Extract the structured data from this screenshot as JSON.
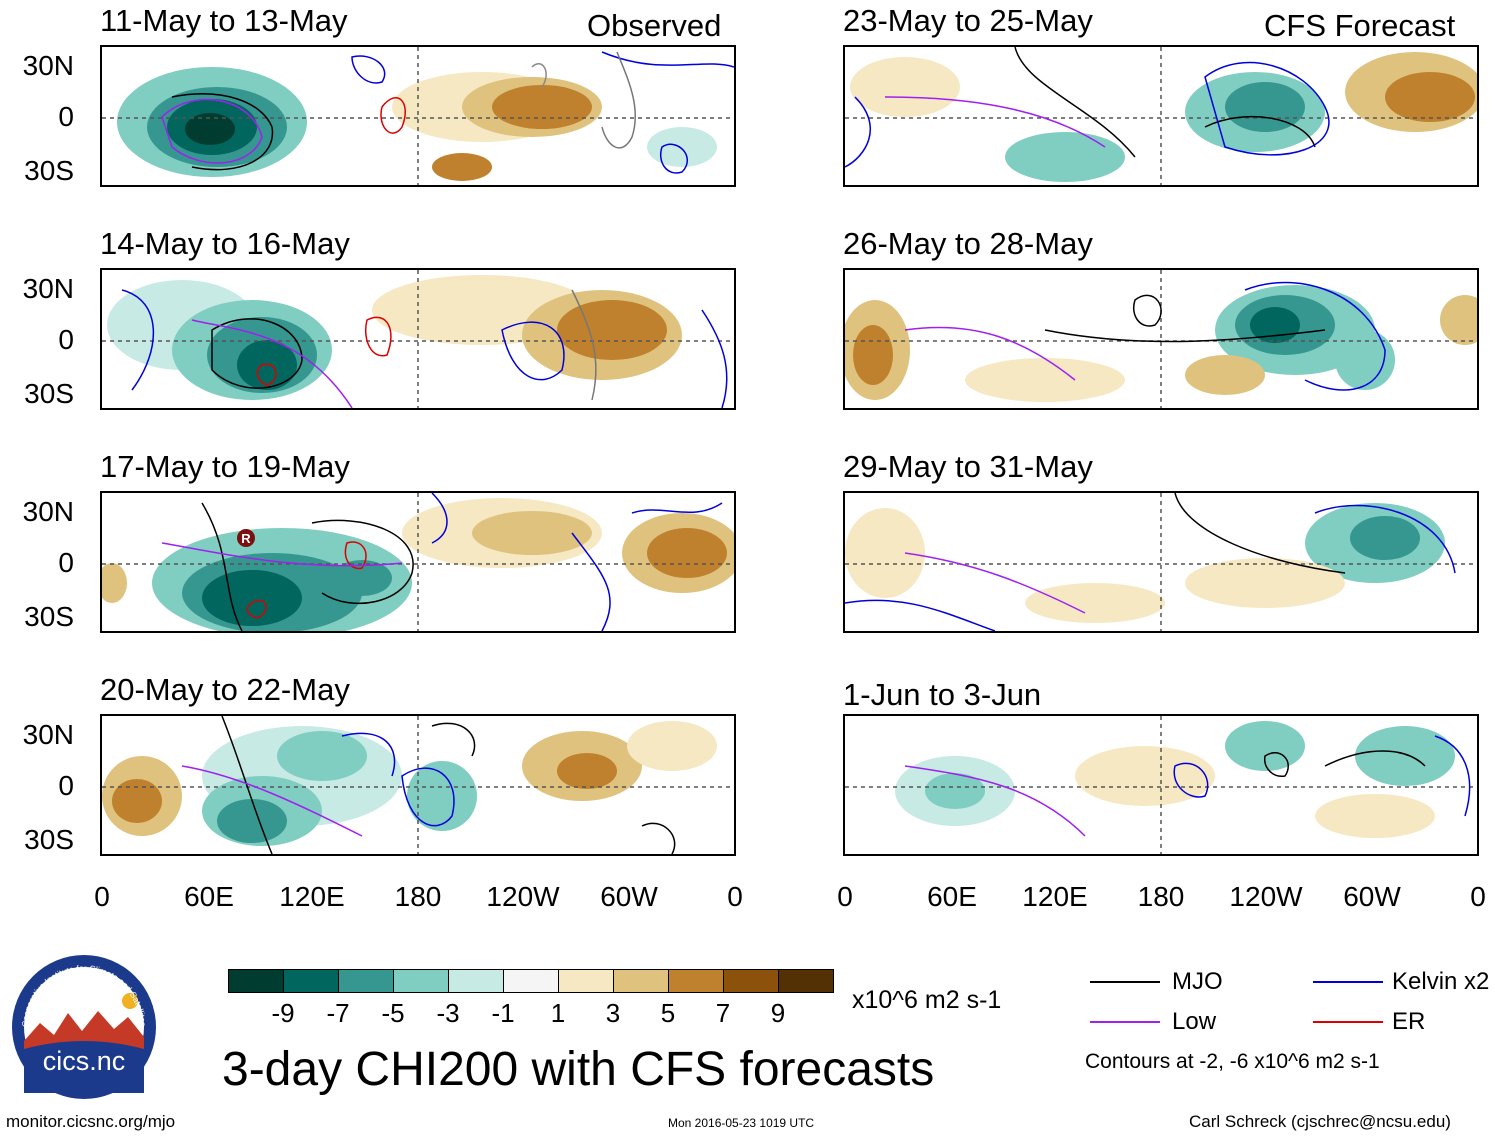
{
  "header": {
    "left_label": "Observed",
    "right_label": "CFS Forecast"
  },
  "panels": {
    "left": [
      {
        "title": "11-May to 13-May"
      },
      {
        "title": "14-May to 16-May"
      },
      {
        "title": "17-May to 19-May"
      },
      {
        "title": "20-May to 22-May"
      }
    ],
    "right": [
      {
        "title": "23-May to 25-May"
      },
      {
        "title": "26-May to 28-May"
      },
      {
        "title": "29-May to 31-May"
      },
      {
        "title": "1-Jun to 3-Jun"
      }
    ]
  },
  "axes": {
    "lat_labels": [
      "30N",
      "0",
      "30S"
    ],
    "lon_labels": [
      "0",
      "60E",
      "120E",
      "180",
      "120W",
      "60W",
      "0"
    ]
  },
  "colorbar": {
    "labels": [
      "-9",
      "-7",
      "-5",
      "-3",
      "-1",
      "1",
      "3",
      "5",
      "7",
      "9"
    ],
    "colors": [
      "#003c30",
      "#01665e",
      "#35978f",
      "#80cdc1",
      "#c7eae5",
      "#f5f5f5",
      "#f6e8c3",
      "#dfc27d",
      "#bf812d",
      "#8c510a",
      "#543005"
    ],
    "units": "x10^6 m2 s-1"
  },
  "title": "3-day CHI200 with CFS forecasts",
  "legend": {
    "items": [
      {
        "label": "MJO",
        "color": "#000000"
      },
      {
        "label": "Kelvin x2",
        "color": "#0000dd"
      },
      {
        "label": "Low",
        "color": "#a020f0"
      },
      {
        "label": "ER",
        "color": "#dd0000"
      }
    ],
    "note": "Contours at -2, -6 x10^6 m2 s-1"
  },
  "logo": {
    "text": "cics.nc",
    "arc_text": "Cooperative Institute for Climate and Satellites"
  },
  "marker": {
    "letter": "R"
  },
  "footer": {
    "left": "monitor.cicsnc.org/mjo",
    "center": "Mon 2016-05-23 1019 UTC",
    "right": "Carl Schreck (cjschrec@ncsu.edu)"
  }
}
